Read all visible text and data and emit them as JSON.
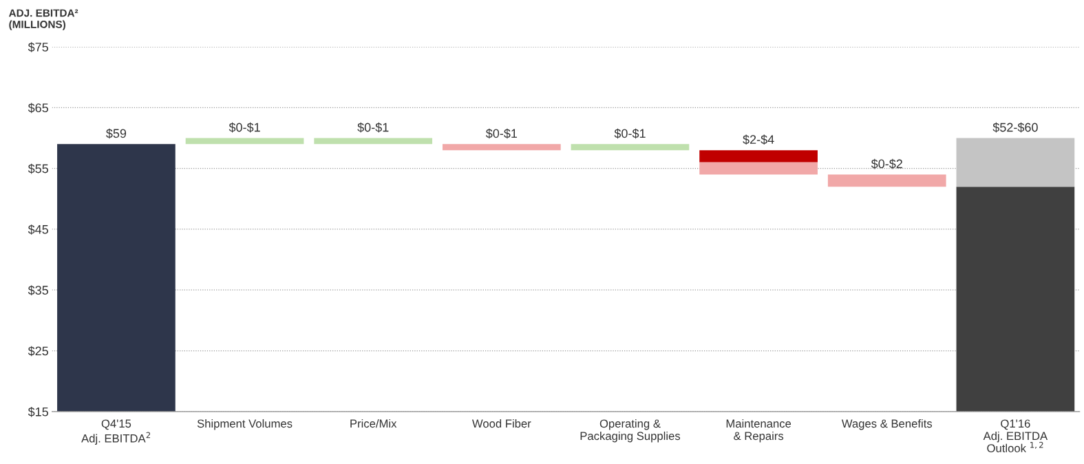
{
  "chart_data": {
    "type": "bar",
    "ylabel": "ADJ. EBITDA²\n(MILLIONS)",
    "categories": [
      "Q4'15\nAdj. EBITDA$^{2}$",
      "Shipment Volumes",
      "Price/Mix",
      "Wood Fiber",
      "Operating &\nPackaging Supplies",
      "Maintenance\n& Repairs",
      "Wages & Benefits",
      "Q1'16\nAdj. EBITDA\nOutlook $^{1,2}$"
    ],
    "series": [
      {
        "values": [
          44,
          null,
          null,
          null,
          null,
          2,
          null,
          37
        ],
        "base": [
          15,
          null,
          null,
          null,
          null,
          56,
          null,
          15
        ],
        "colors": [
          "#2e364b",
          null,
          null,
          null,
          null,
          "#c00000",
          null,
          "#404040"
        ]
      },
      {
        "values": [
          null,
          1,
          1,
          1,
          1,
          2,
          2,
          8
        ],
        "base": [
          null,
          59,
          59,
          58,
          58,
          54,
          52,
          52
        ],
        "colors": [
          null,
          "#bfe0ad",
          "#bfe0ad",
          "#f1a8a8",
          "#bfe0ad",
          "#f1a8a8",
          "#f1a8a8",
          "#c4c4c4"
        ]
      }
    ],
    "value_labels": [
      "$59",
      "$0-$1",
      "$0-$1",
      "$0-$1",
      "$0-$1",
      "$2-$4",
      "$0-$2",
      "$52-$60"
    ],
    "ylim": [
      15,
      75
    ],
    "yticks": [
      {
        "value": 15,
        "label": "$15"
      },
      {
        "value": 25,
        "label": "$25"
      },
      {
        "value": 35,
        "label": "$35"
      },
      {
        "value": 45,
        "label": "$45"
      },
      {
        "value": 55,
        "label": "$55"
      },
      {
        "value": 65,
        "label": "$65"
      },
      {
        "value": 75,
        "label": "$75"
      }
    ],
    "grid": "y",
    "legend": false
  }
}
